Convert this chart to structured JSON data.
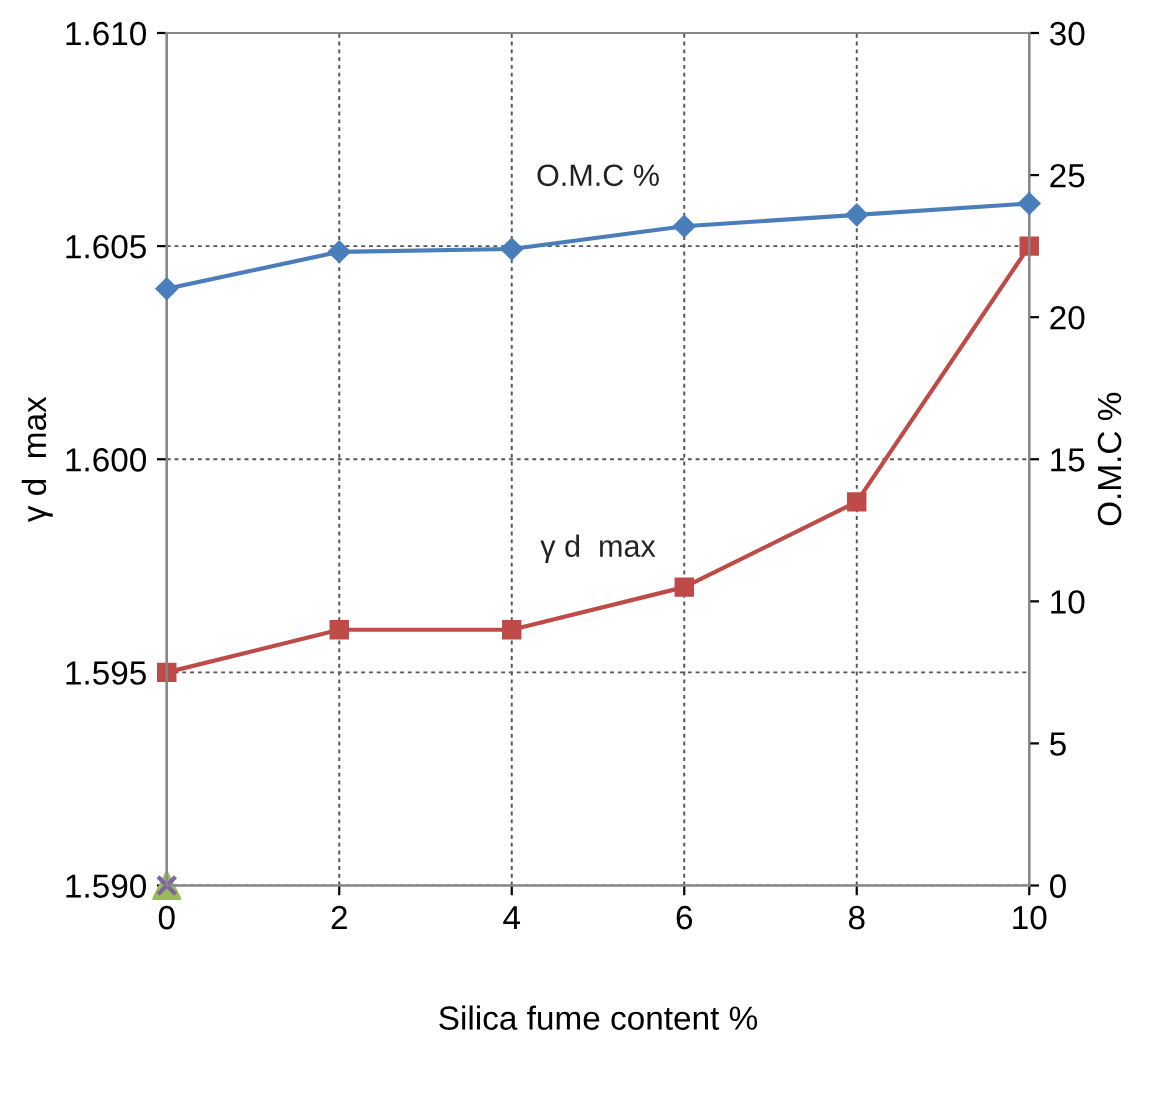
{
  "chart_data": {
    "type": "line",
    "xlabel": "Silica fume content %",
    "ylabel": "γ d  max",
    "y2label": "O.M.C %",
    "x": [
      0,
      2,
      4,
      6,
      8,
      10
    ],
    "series": [
      {
        "name": "O.M.C %",
        "color": "#4a7ebb",
        "axis": "y2",
        "marker": "diamond",
        "values": [
          21.0,
          22.3,
          22.4,
          23.2,
          23.6,
          24.0
        ]
      },
      {
        "name": "γ d  max",
        "color": "#be4b48",
        "marker": "square",
        "values": [
          1.595,
          1.596,
          1.596,
          1.597,
          1.599,
          1.605
        ]
      },
      {
        "type": "scatter",
        "color": "#9bbb59",
        "marker": "triangle",
        "x": [
          0
        ],
        "values": [
          1.59
        ]
      },
      {
        "type": "scatter",
        "color": "#8064a2",
        "marker": "cross",
        "x": [
          0
        ],
        "values": [
          1.59
        ]
      }
    ],
    "xlim": [
      0,
      10
    ],
    "xticks": [
      0,
      2,
      4,
      6,
      8,
      10
    ],
    "ylim": [
      1.59,
      1.61
    ],
    "yticks": [
      {
        "value": 1.59,
        "label": "1.590"
      },
      {
        "value": 1.595,
        "label": "1.595"
      },
      {
        "value": 1.6,
        "label": "1.600"
      },
      {
        "value": 1.605,
        "label": "1.605"
      },
      {
        "value": 1.61,
        "label": "1.610"
      }
    ],
    "y2lim": [
      0,
      30
    ],
    "y2ticks": [
      0,
      5,
      10,
      15,
      20,
      25,
      30
    ],
    "grid": true,
    "legend": false
  }
}
